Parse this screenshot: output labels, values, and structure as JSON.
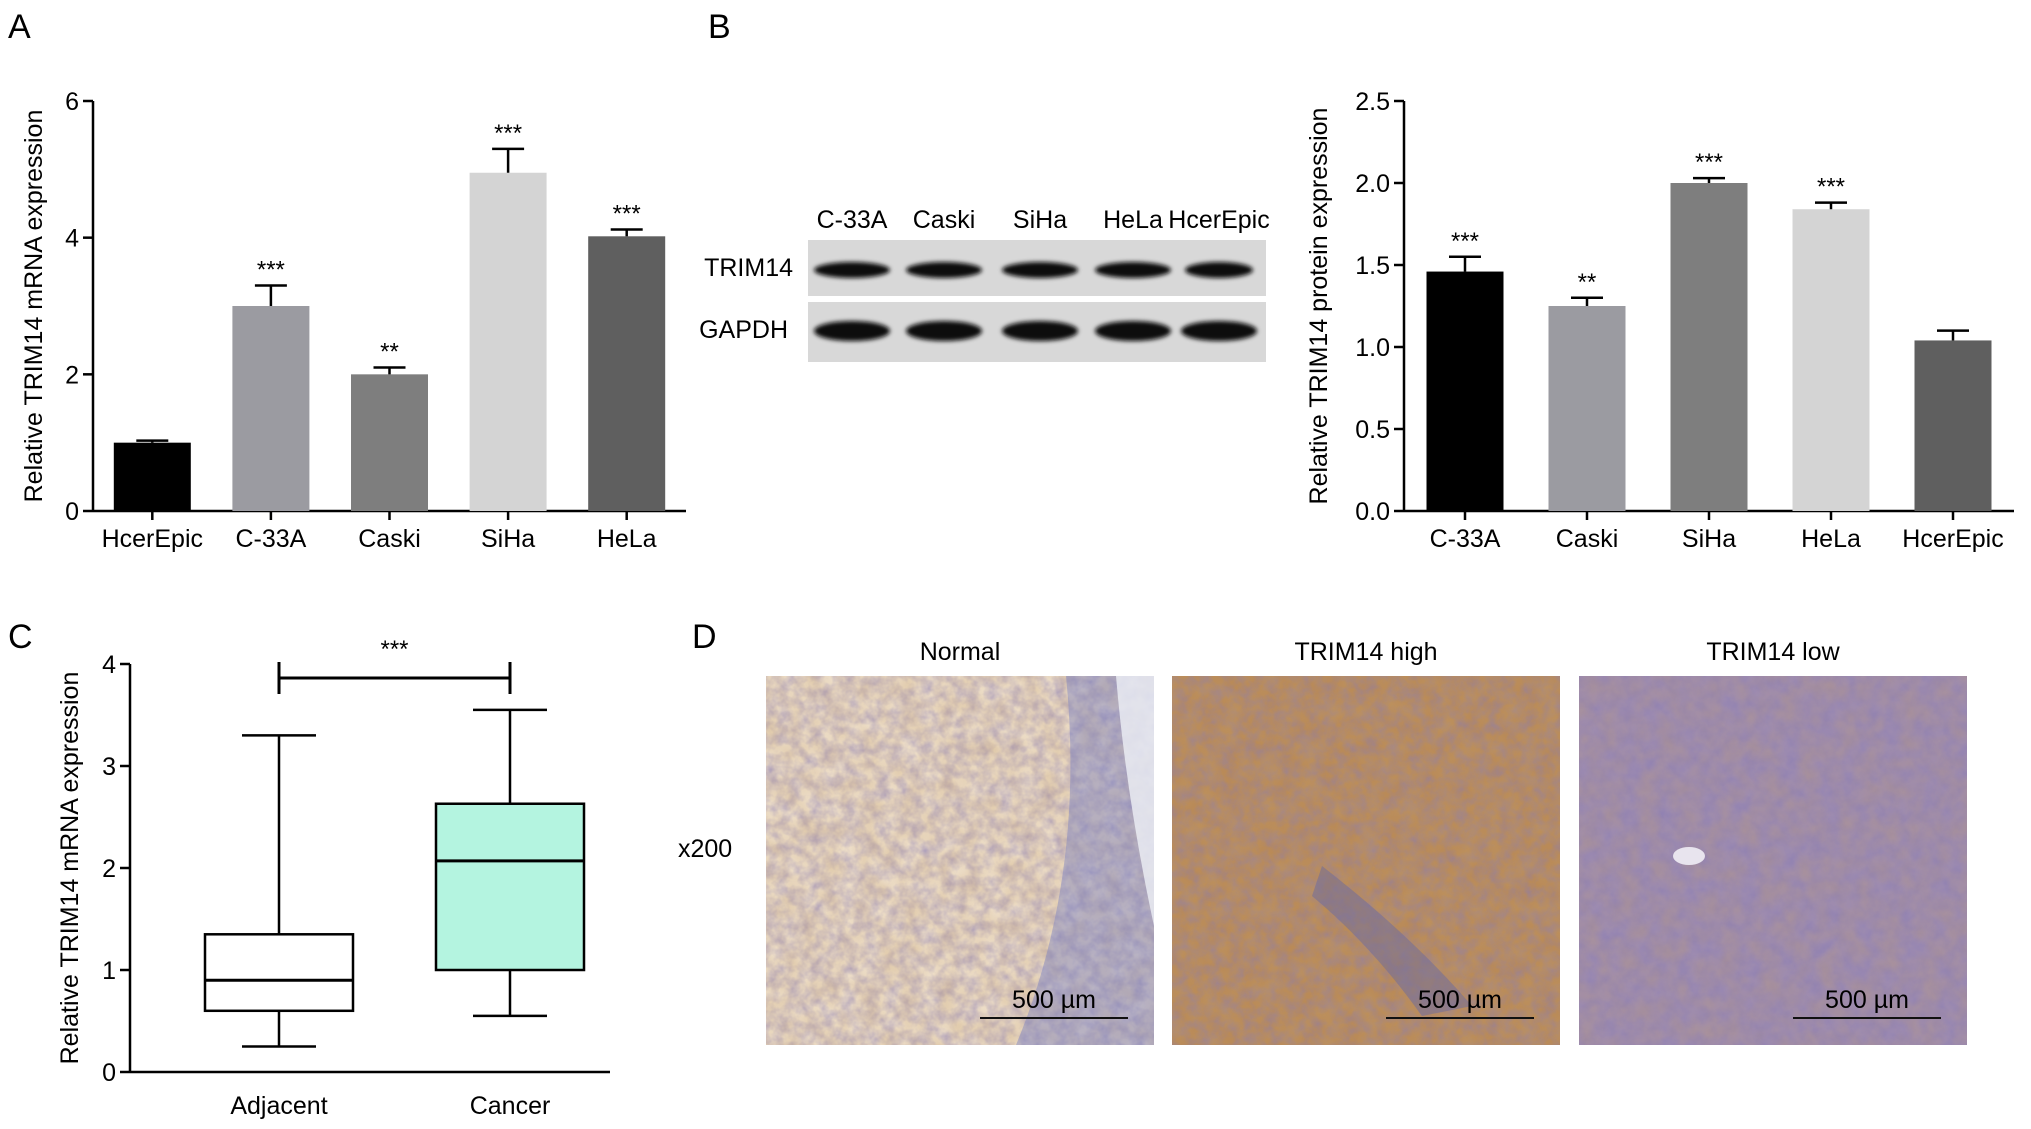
{
  "panel_letters": [
    "A",
    "B",
    "C",
    "D"
  ],
  "chart_data": [
    {
      "panel": "A",
      "type": "bar",
      "categories": [
        "HcerEpic",
        "C-33A",
        "Caski",
        "SiHa",
        "HeLa"
      ],
      "values": [
        1.0,
        3.0,
        2.0,
        4.95,
        4.02
      ],
      "errors": [
        0.03,
        0.3,
        0.1,
        0.35,
        0.1
      ],
      "significance": [
        "",
        "***",
        "**",
        "***",
        "***"
      ],
      "colors": [
        "#000000",
        "#9b9ba1",
        "#7e7e7e",
        "#d4d4d4",
        "#5f5f5f"
      ],
      "ylabel": "Relative TRIM14 mRNA expression",
      "xlabel": "",
      "ylim": [
        0,
        6
      ],
      "yticks": [
        "0",
        "2",
        "4",
        "6"
      ]
    },
    {
      "panel": "B",
      "type": "bar",
      "categories": [
        "C-33A",
        "Caski",
        "SiHa",
        "HeLa",
        "HcerEpic"
      ],
      "values": [
        1.46,
        1.25,
        2.0,
        1.84,
        1.04
      ],
      "errors": [
        0.09,
        0.05,
        0.03,
        0.04,
        0.06
      ],
      "significance": [
        "***",
        "**",
        "***",
        "***",
        ""
      ],
      "colors": [
        "#000000",
        "#9b9ba1",
        "#7e7e7e",
        "#d4d4d4",
        "#5f5f5f"
      ],
      "ylabel": "Relative TRIM14 protein expression",
      "xlabel": "",
      "ylim": [
        0,
        2.5
      ],
      "yticks": [
        "0.0",
        "0.5",
        "1.0",
        "1.5",
        "2.0",
        "2.5"
      ]
    },
    {
      "panel": "C",
      "type": "box",
      "categories": [
        "Adjacent",
        "Cancer"
      ],
      "boxes": [
        {
          "min": 0.25,
          "q1": 0.6,
          "median": 0.9,
          "q3": 1.35,
          "max": 3.3
        },
        {
          "min": 0.55,
          "q1": 1.0,
          "median": 2.07,
          "q3": 2.63,
          "max": 3.55
        }
      ],
      "box_colors": [
        "#ffffff",
        "#b4f4e0"
      ],
      "comparison": {
        "label": "***",
        "between": [
          "Adjacent",
          "Cancer"
        ]
      },
      "ylabel": "Relative TRIM14 mRNA expression",
      "xlabel": "",
      "ylim": [
        0,
        4
      ],
      "yticks": [
        "0",
        "1",
        "2",
        "3",
        "4"
      ]
    }
  ],
  "western_blot": {
    "lanes": [
      "C-33A",
      "Caski",
      "SiHa",
      "HeLa",
      "HcerEpic"
    ],
    "rows": [
      "TRIM14",
      "GAPDH"
    ]
  },
  "ihc": {
    "magnification": "x200",
    "panels": [
      {
        "title": "Normal",
        "scale_bar": "500 µm"
      },
      {
        "title": "TRIM14 high",
        "scale_bar": "500 µm"
      },
      {
        "title": "TRIM14 low",
        "scale_bar": "500 µm"
      }
    ]
  }
}
